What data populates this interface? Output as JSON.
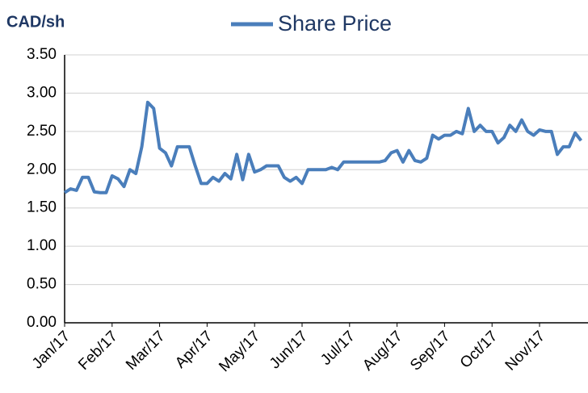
{
  "chart_data": {
    "type": "line",
    "y_axis_label": "CAD/sh",
    "categories": [
      "Jan/17",
      null,
      null,
      null,
      null,
      null,
      null,
      null,
      "Feb/17",
      null,
      null,
      null,
      null,
      null,
      null,
      null,
      "Mar/17",
      null,
      null,
      null,
      null,
      null,
      null,
      null,
      "Apr/17",
      null,
      null,
      null,
      null,
      null,
      null,
      null,
      "May/17",
      null,
      null,
      null,
      null,
      null,
      null,
      null,
      "Jun/17",
      null,
      null,
      null,
      null,
      null,
      null,
      null,
      "Jul/17",
      null,
      null,
      null,
      null,
      null,
      null,
      null,
      "Aug/17",
      null,
      null,
      null,
      null,
      null,
      null,
      null,
      "Sep/17",
      null,
      null,
      null,
      null,
      null,
      null,
      null,
      "Oct/17",
      null,
      null,
      null,
      null,
      null,
      null,
      null,
      "Nov/17",
      null,
      null,
      null,
      null,
      null,
      null,
      null
    ],
    "series": [
      {
        "name": "Share Price",
        "color": "#4a7ebb",
        "values": [
          1.7,
          1.75,
          1.73,
          1.9,
          1.9,
          1.71,
          1.7,
          1.7,
          1.92,
          1.88,
          1.78,
          2.0,
          1.95,
          2.3,
          2.88,
          2.8,
          2.28,
          2.22,
          2.05,
          2.3,
          2.3,
          2.3,
          2.05,
          1.82,
          1.82,
          1.9,
          1.85,
          1.95,
          1.88,
          2.2,
          1.87,
          2.2,
          1.97,
          2.0,
          2.05,
          2.05,
          2.05,
          1.9,
          1.85,
          1.9,
          1.82,
          2.0,
          2.0,
          2.0,
          2.0,
          2.03,
          2.0,
          2.1,
          2.1,
          2.1,
          2.1,
          2.1,
          2.1,
          2.1,
          2.12,
          2.22,
          2.25,
          2.1,
          2.25,
          2.12,
          2.1,
          2.15,
          2.45,
          2.4,
          2.45,
          2.45,
          2.5,
          2.47,
          2.8,
          2.5,
          2.58,
          2.5,
          2.5,
          2.35,
          2.42,
          2.58,
          2.5,
          2.65,
          2.5,
          2.45,
          2.52,
          2.5,
          2.5,
          2.2,
          2.3,
          2.3,
          2.48,
          2.38
        ]
      }
    ],
    "ylim": [
      0,
      3.5
    ],
    "yticks": [
      {
        "value": 0,
        "label": "0.00"
      },
      {
        "value": 0.5,
        "label": "0.50"
      },
      {
        "value": 1,
        "label": "1.00"
      },
      {
        "value": 1.5,
        "label": "1.50"
      },
      {
        "value": 2,
        "label": "2.00"
      },
      {
        "value": 2.5,
        "label": "2.50"
      },
      {
        "value": 3,
        "label": "3.00"
      },
      {
        "value": 3.5,
        "label": "3.50"
      }
    ],
    "grid": true,
    "legend": "top"
  }
}
